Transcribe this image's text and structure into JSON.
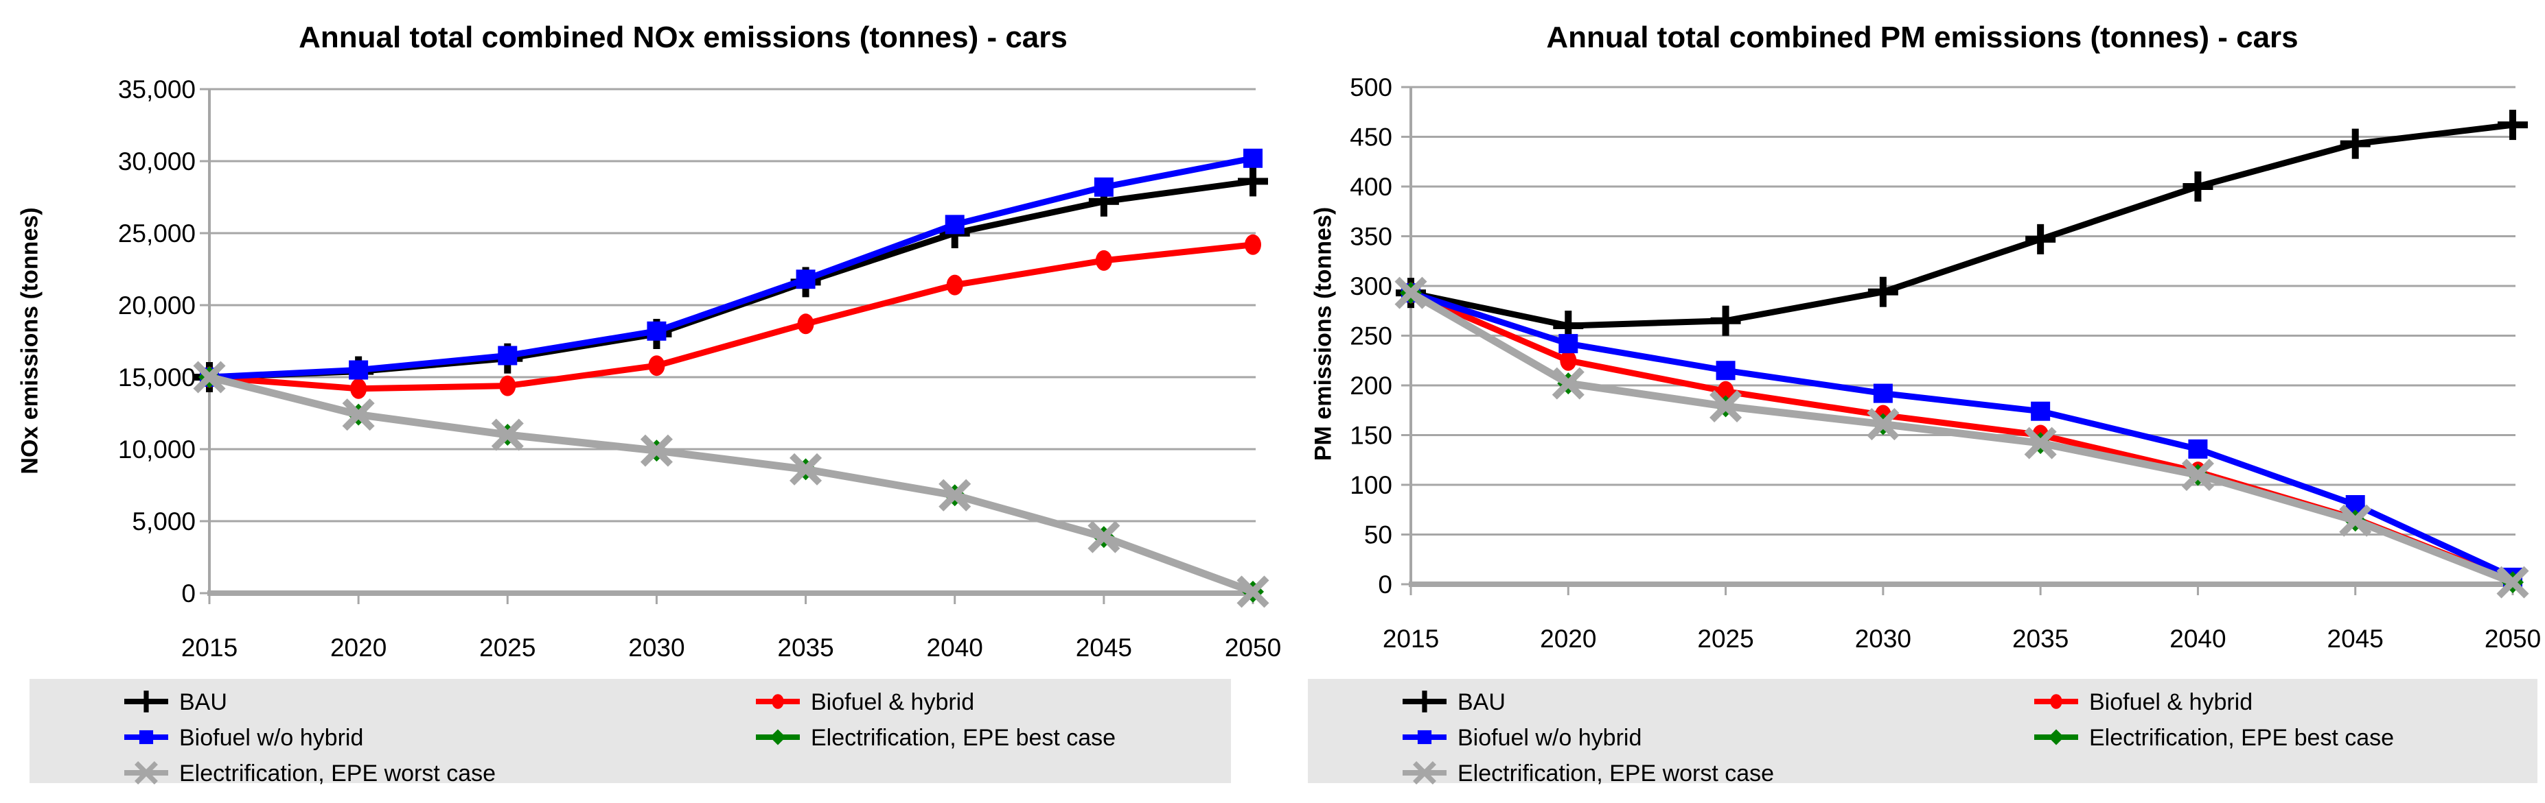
{
  "page": {
    "background": "#ffffff"
  },
  "chart_data": [
    {
      "type": "line",
      "title": "Annual total combined NOx emissions (tonnes) - cars",
      "xlabel": "",
      "ylabel": "NOx emissions (tonnes)",
      "x_tick_labels": [
        "2015",
        "2020",
        "2025",
        "2030",
        "2035",
        "2040",
        "2045",
        "2050"
      ],
      "ylim": [
        0,
        35000
      ],
      "ytick_step": 5000,
      "ytick_format": "thousands",
      "grid": true,
      "legend_position": "bottom",
      "legend_background": "#E6E6E6",
      "gridline_color": "#A6A6A6",
      "legend_columns": [
        [
          "BAU",
          "Biofuel w/o hybrid",
          "Electrification, EPE worst case"
        ],
        [
          "Biofuel & hybrid",
          "Electrification, EPE best case"
        ]
      ],
      "series": [
        {
          "name": "BAU",
          "color": "#000000",
          "marker": "plus",
          "values": [
            15000,
            15400,
            16300,
            18000,
            21600,
            25000,
            27200,
            28600
          ]
        },
        {
          "name": "Biofuel & hybrid",
          "color": "#FF0000",
          "marker": "circle",
          "values": [
            15000,
            14200,
            14400,
            15800,
            18700,
            21400,
            23100,
            24200
          ]
        },
        {
          "name": "Biofuel w/o hybrid",
          "color": "#0000FF",
          "marker": "square",
          "values": [
            15000,
            15500,
            16500,
            18200,
            21800,
            25600,
            28200,
            30200
          ]
        },
        {
          "name": "Electrification, EPE best case",
          "color": "#008000",
          "marker": "diamond",
          "values": [
            15000,
            12400,
            11000,
            9900,
            8600,
            6800,
            3900,
            100
          ]
        },
        {
          "name": "Electrification, EPE worst case",
          "color": "#A6A6A6",
          "marker": "x",
          "values": [
            15000,
            12400,
            11000,
            9900,
            8600,
            6800,
            3900,
            100
          ]
        }
      ]
    },
    {
      "type": "line",
      "title": "Annual total combined PM emissions (tonnes) - cars",
      "xlabel": "",
      "ylabel": "PM emissions (tonnes)",
      "x_tick_labels": [
        "2015",
        "2020",
        "2025",
        "2030",
        "2035",
        "2040",
        "2045",
        "2050"
      ],
      "ylim": [
        0,
        500
      ],
      "ytick_step": 50,
      "ytick_format": "plain",
      "grid": true,
      "legend_position": "bottom",
      "legend_background": "#E6E6E6",
      "gridline_color": "#A6A6A6",
      "legend_columns": [
        [
          "BAU",
          "Biofuel w/o hybrid",
          "Electrification, EPE worst case"
        ],
        [
          "Biofuel & hybrid",
          "Electrification, EPE best case"
        ]
      ],
      "series": [
        {
          "name": "BAU",
          "color": "#000000",
          "marker": "plus",
          "values": [
            293,
            260,
            265,
            294,
            347,
            400,
            443,
            462
          ]
        },
        {
          "name": "Biofuel & hybrid",
          "color": "#FF0000",
          "marker": "circle",
          "values": [
            293,
            225,
            194,
            170,
            150,
            113,
            66,
            4
          ]
        },
        {
          "name": "Biofuel w/o hybrid",
          "color": "#0000FF",
          "marker": "square",
          "values": [
            293,
            242,
            215,
            192,
            174,
            136,
            80,
            7
          ]
        },
        {
          "name": "Electrification, EPE best case",
          "color": "#008000",
          "marker": "diamond",
          "values": [
            293,
            202,
            179,
            161,
            142,
            110,
            64,
            2
          ]
        },
        {
          "name": "Electrification, EPE worst case",
          "color": "#A6A6A6",
          "marker": "x",
          "values": [
            293,
            202,
            179,
            161,
            142,
            110,
            64,
            2
          ]
        }
      ]
    }
  ]
}
